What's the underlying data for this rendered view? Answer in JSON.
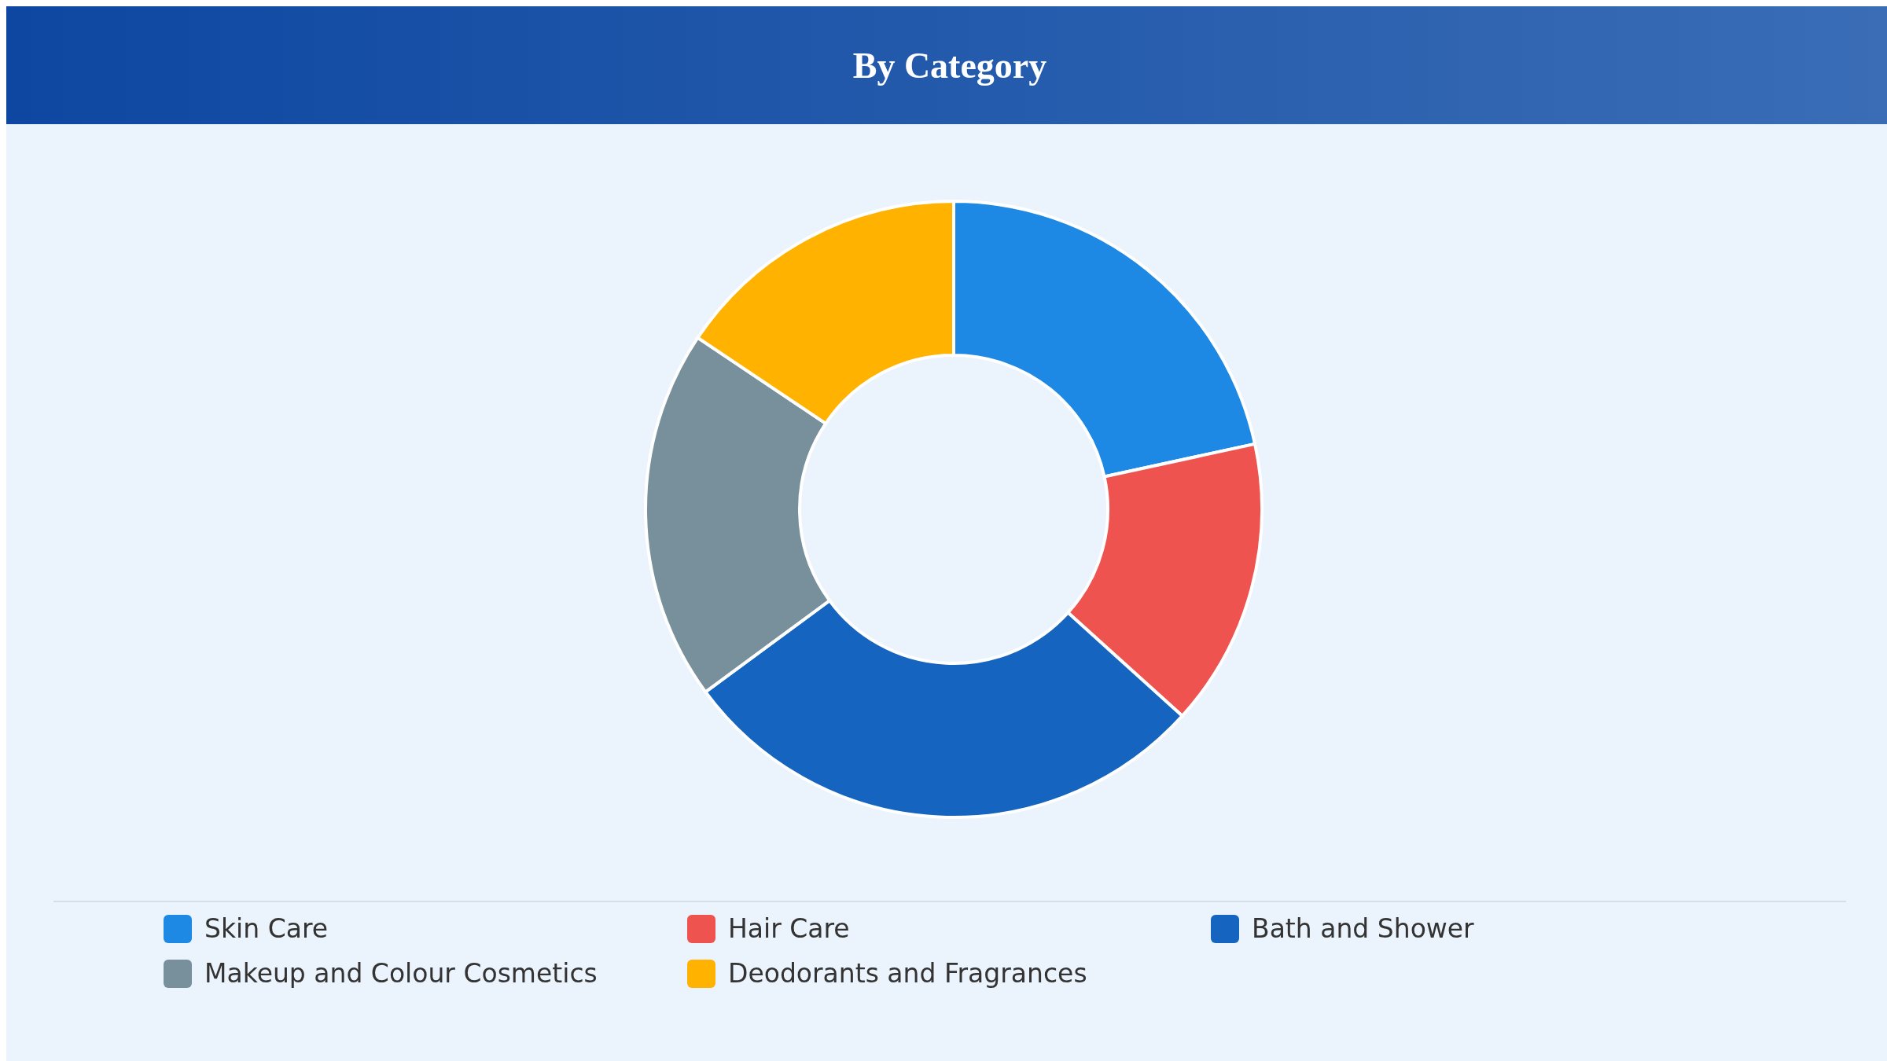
{
  "chart_data": {
    "type": "donut",
    "title": "By Category",
    "categories": [
      "Skin Care",
      "Hair Care",
      "Bath and Shower",
      "Makeup and Colour Cosmetics",
      "Deodorants and Fragrances"
    ],
    "values": [
      21.6,
      15.1,
      28.2,
      19.5,
      15.6
    ],
    "colors": [
      "#1e88e5",
      "#ef5350",
      "#1565c0",
      "#78909c",
      "#ffb300"
    ],
    "legend": "bottom"
  }
}
